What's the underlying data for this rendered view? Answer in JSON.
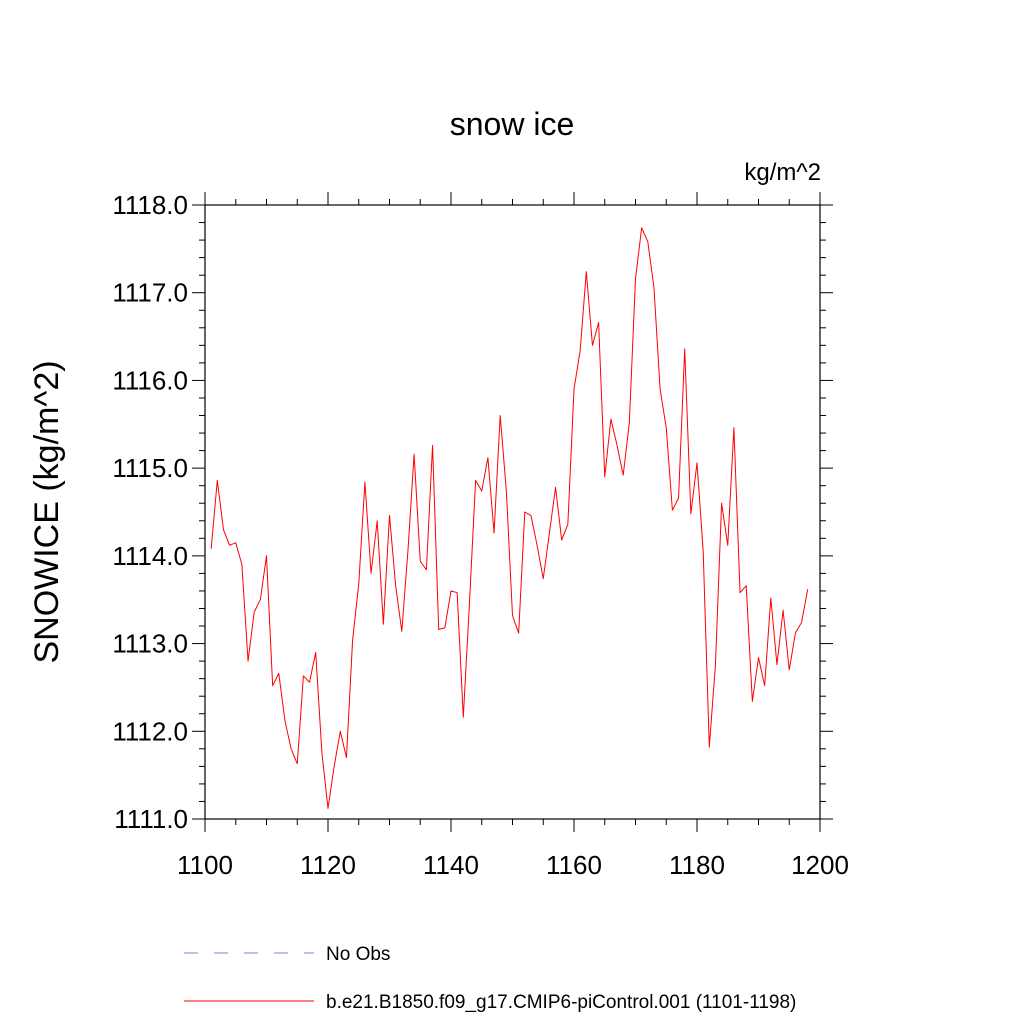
{
  "chart_data": {
    "type": "line",
    "title": "snow ice",
    "units_label": "kg/m^2",
    "ylabel": "SNOWICE  (kg/m^2)",
    "xlabel": "",
    "xlim": [
      1100,
      1200
    ],
    "ylim": [
      1111.0,
      1118.0
    ],
    "xticks": [
      1100,
      1120,
      1140,
      1160,
      1180,
      1200
    ],
    "yticks": [
      1111.0,
      1112.0,
      1113.0,
      1114.0,
      1115.0,
      1116.0,
      1117.0,
      1118.0
    ],
    "grid": false,
    "legend_position": "bottom",
    "series": [
      {
        "name": "No Obs",
        "color": "#7f7fd0",
        "style": "dashed",
        "x": [],
        "values": []
      },
      {
        "name": "b.e21.B1850.f09_g17.CMIP6-piControl.001 (1101-1198)",
        "color": "#ff0000",
        "style": "solid",
        "x": [
          1101,
          1102,
          1103,
          1104,
          1105,
          1106,
          1107,
          1108,
          1109,
          1110,
          1111,
          1112,
          1113,
          1114,
          1115,
          1116,
          1117,
          1118,
          1119,
          1120,
          1121,
          1122,
          1123,
          1124,
          1125,
          1126,
          1127,
          1128,
          1129,
          1130,
          1131,
          1132,
          1133,
          1134,
          1135,
          1136,
          1137,
          1138,
          1139,
          1140,
          1141,
          1142,
          1143,
          1144,
          1145,
          1146,
          1147,
          1148,
          1149,
          1150,
          1151,
          1152,
          1153,
          1154,
          1155,
          1156,
          1157,
          1158,
          1159,
          1160,
          1161,
          1162,
          1163,
          1164,
          1165,
          1166,
          1167,
          1168,
          1169,
          1170,
          1171,
          1172,
          1173,
          1174,
          1175,
          1176,
          1177,
          1178,
          1179,
          1180,
          1181,
          1182,
          1183,
          1184,
          1185,
          1186,
          1187,
          1188,
          1189,
          1190,
          1191,
          1192,
          1193,
          1194,
          1195,
          1196,
          1197,
          1198
        ],
        "values": [
          1114.08,
          1114.86,
          1114.3,
          1114.12,
          1114.15,
          1113.9,
          1112.8,
          1113.36,
          1113.5,
          1114.0,
          1112.52,
          1112.66,
          1112.12,
          1111.8,
          1111.63,
          1112.63,
          1112.56,
          1112.9,
          1111.76,
          1111.12,
          1111.6,
          1112.0,
          1111.7,
          1113.04,
          1113.68,
          1114.84,
          1113.8,
          1114.4,
          1113.22,
          1114.46,
          1113.66,
          1113.14,
          1114.06,
          1115.16,
          1113.94,
          1113.84,
          1115.26,
          1113.16,
          1113.18,
          1113.6,
          1113.58,
          1112.16,
          1113.46,
          1114.86,
          1114.74,
          1115.12,
          1114.26,
          1115.6,
          1114.74,
          1113.32,
          1113.12,
          1114.5,
          1114.46,
          1114.12,
          1113.74,
          1114.26,
          1114.78,
          1114.18,
          1114.36,
          1115.9,
          1116.34,
          1117.24,
          1116.4,
          1116.66,
          1114.9,
          1115.56,
          1115.26,
          1114.92,
          1115.52,
          1117.16,
          1117.74,
          1117.58,
          1117.06,
          1115.9,
          1115.46,
          1114.52,
          1114.66,
          1116.36,
          1114.48,
          1115.06,
          1114.06,
          1111.82,
          1112.76,
          1114.6,
          1114.12,
          1115.46,
          1113.58,
          1113.66,
          1112.34,
          1112.84,
          1112.52,
          1113.52,
          1112.76,
          1113.38,
          1112.7,
          1113.12,
          1113.24,
          1113.62
        ]
      }
    ]
  }
}
